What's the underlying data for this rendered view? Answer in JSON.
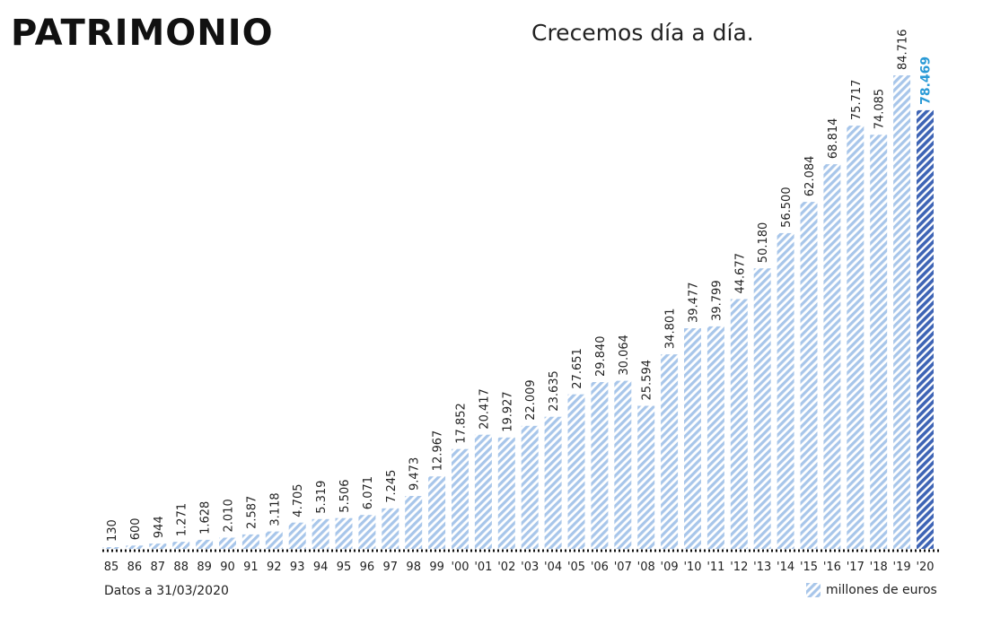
{
  "title": "PATRIMONIO",
  "subtitle": "Crecemos día a día.",
  "footnote": "Datos a 31/03/2020",
  "legend": {
    "label": "millones de euros"
  },
  "colors": {
    "bar_stripe": "#a8c6ea",
    "highlight_stripe": "#3e64b5",
    "highlight_label": "#2a9ad6",
    "baseline": "#111111",
    "text": "#222222"
  },
  "chart_data": {
    "type": "bar",
    "title": "Crecemos día a día.",
    "xlabel": "",
    "ylabel": "",
    "unit": "millones de euros",
    "ylim": [
      0,
      90000
    ],
    "grid": false,
    "legend_position": "bottom-right",
    "categories": [
      "85",
      "86",
      "87",
      "88",
      "89",
      "90",
      "91",
      "92",
      "93",
      "94",
      "95",
      "96",
      "97",
      "98",
      "99",
      "'00",
      "'01",
      "'02",
      "'03",
      "'04",
      "'05",
      "'06",
      "'07",
      "'08",
      "'09",
      "'10",
      "'11",
      "'12",
      "'13",
      "'14",
      "'15",
      "'16",
      "'17",
      "'18",
      "'19",
      "'20"
    ],
    "values": [
      130,
      600,
      944,
      1271,
      1628,
      2010,
      2587,
      3118,
      4705,
      5319,
      5506,
      6071,
      7245,
      9473,
      12967,
      17852,
      20417,
      19927,
      22009,
      23635,
      27651,
      29840,
      30064,
      25594,
      34801,
      39477,
      39799,
      44677,
      50180,
      56500,
      62084,
      68814,
      75717,
      74085,
      84716,
      78469
    ],
    "labels": [
      "130",
      "600",
      "944",
      "1.271",
      "1.628",
      "2.010",
      "2.587",
      "3.118",
      "4.705",
      "5.319",
      "5.506",
      "6.071",
      "7.245",
      "9.473",
      "12.967",
      "17.852",
      "20.417",
      "19.927",
      "22.009",
      "23.635",
      "27.651",
      "29.840",
      "30.064",
      "25.594",
      "34.801",
      "39.477",
      "39.799",
      "44.677",
      "50.180",
      "56.500",
      "62.084",
      "68.814",
      "75.717",
      "74.085",
      "84.716",
      "78.469"
    ],
    "highlight_index": 35
  }
}
